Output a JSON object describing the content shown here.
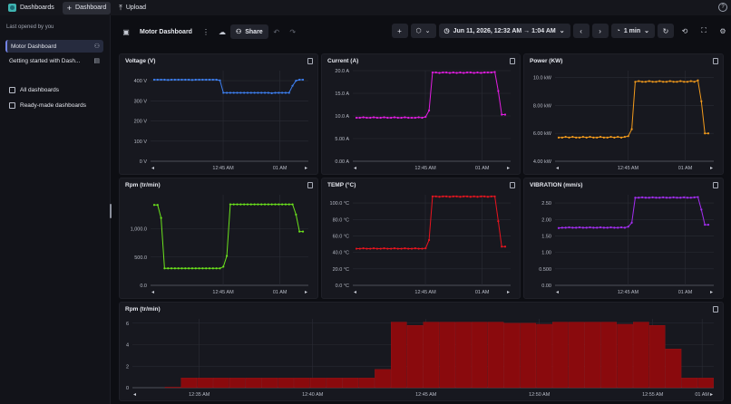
{
  "topbar": {
    "app_tab": "Dashboards",
    "dashboard_tab": "Dashboard",
    "upload_tab": "Upload",
    "help_glyph": "?"
  },
  "sidebar": {
    "section_label": "Last opened by you",
    "items": [
      {
        "label": "Motor Dashboard",
        "icon": "people-icon",
        "selected": true
      },
      {
        "label": "Getting started with Dash...",
        "icon": "dashboard-icon",
        "selected": false
      },
      {
        "label": "All dashboards",
        "icon": "grid-icon",
        "selected": false
      },
      {
        "label": "Ready-made dashboards",
        "icon": "template-icon",
        "selected": false
      }
    ]
  },
  "toolbar": {
    "title": "Motor Dashboard",
    "share_label": "Share",
    "timeframe": "Jun 11, 2026, 12:32 AM → 1:04 AM",
    "refresh_interval": "1 min"
  },
  "colors": {
    "voltage": "#3d7ff0",
    "current": "#e11de0",
    "power": "#f29a1c",
    "rpm": "#6be21d",
    "temp": "#e8141f",
    "vibration": "#a42ef2",
    "histogram": "#8a0a0d"
  },
  "chart_data": [
    {
      "id": "voltage",
      "type": "line",
      "title": "Voltage (V)",
      "ylim": [
        0,
        450
      ],
      "yticks": [
        0,
        100,
        200,
        300,
        400
      ],
      "ytick_labels": [
        "0 V",
        "100 V",
        "200 V",
        "300 V",
        "400 V"
      ],
      "xtick_labels": [
        "12:45 AM",
        "01 AM"
      ],
      "values": [
        405,
        405,
        405,
        405,
        404,
        405,
        405,
        405,
        405,
        405,
        405,
        404,
        405,
        405,
        405,
        405,
        405,
        405,
        405,
        402,
        340,
        340,
        340,
        340,
        340,
        340,
        340,
        340,
        340,
        340,
        340,
        340,
        340,
        340,
        338,
        340,
        340,
        340,
        340,
        340,
        375,
        400,
        405,
        405
      ]
    },
    {
      "id": "current",
      "type": "line",
      "title": "Current (A)",
      "ylim": [
        0,
        20
      ],
      "yticks": [
        0,
        5,
        10,
        15,
        20
      ],
      "ytick_labels": [
        "0.00 A",
        "5.00 A",
        "10.0 A",
        "15.0 A",
        "20.0 A"
      ],
      "xtick_labels": [
        "12:45 AM",
        "01 AM"
      ],
      "values": [
        9.6,
        9.6,
        9.7,
        9.6,
        9.6,
        9.7,
        9.6,
        9.6,
        9.7,
        9.6,
        9.6,
        9.7,
        9.6,
        9.6,
        9.7,
        9.6,
        9.6,
        9.6,
        9.7,
        9.6,
        9.8,
        11.2,
        19.6,
        19.6,
        19.5,
        19.6,
        19.6,
        19.5,
        19.6,
        19.5,
        19.6,
        19.5,
        19.6,
        19.6,
        19.5,
        19.6,
        19.5,
        19.6,
        19.6,
        19.6,
        19.7,
        15.5,
        10.3,
        10.3
      ]
    },
    {
      "id": "power",
      "type": "line",
      "title": "Power (KW)",
      "ylim": [
        4,
        10.5
      ],
      "yticks": [
        4,
        6,
        8,
        10
      ],
      "ytick_labels": [
        "4.00 kW",
        "6.00 kW",
        "8.00 kW",
        "10.0 kW"
      ],
      "xtick_labels": [
        "12:45 AM",
        "01 AM"
      ],
      "values": [
        5.7,
        5.7,
        5.75,
        5.7,
        5.75,
        5.7,
        5.7,
        5.75,
        5.7,
        5.75,
        5.7,
        5.7,
        5.75,
        5.7,
        5.7,
        5.75,
        5.7,
        5.75,
        5.7,
        5.75,
        5.8,
        6.3,
        9.7,
        9.75,
        9.7,
        9.7,
        9.75,
        9.7,
        9.7,
        9.75,
        9.7,
        9.7,
        9.75,
        9.7,
        9.7,
        9.75,
        9.7,
        9.7,
        9.75,
        9.7,
        9.8,
        8.3,
        6.0,
        6.0
      ]
    },
    {
      "id": "rpm",
      "type": "line",
      "title": "Rpm (tr/min)",
      "ylim": [
        0,
        1600
      ],
      "yticks": [
        0,
        500,
        1000
      ],
      "ytick_labels": [
        "0.0",
        "500.0",
        "1,000.0"
      ],
      "xtick_labels": [
        "12:45 AM",
        "01 AM"
      ],
      "values": [
        1420,
        1420,
        1190,
        300,
        300,
        300,
        300,
        300,
        300,
        300,
        300,
        300,
        300,
        300,
        300,
        300,
        300,
        300,
        300,
        300,
        330,
        520,
        1430,
        1430,
        1430,
        1430,
        1430,
        1430,
        1430,
        1430,
        1430,
        1430,
        1430,
        1430,
        1430,
        1430,
        1430,
        1430,
        1430,
        1430,
        1430,
        1250,
        950,
        950
      ]
    },
    {
      "id": "temp",
      "type": "line",
      "title": "TEMP (°C)",
      "ylim": [
        0,
        110
      ],
      "yticks": [
        0,
        20,
        40,
        60,
        80,
        100
      ],
      "ytick_labels": [
        "0.0 °C",
        "20.0 °C",
        "40.0 °C",
        "60.0 °C",
        "80.0 °C",
        "100.0 °C"
      ],
      "xtick_labels": [
        "12:45 AM",
        "01 AM"
      ],
      "values": [
        44.5,
        44.5,
        45,
        44.5,
        44.5,
        45,
        44.5,
        44.5,
        45,
        44.5,
        44.5,
        45,
        44.5,
        44.5,
        45,
        44.5,
        44.5,
        45,
        44.5,
        44.5,
        45,
        55,
        108,
        108,
        107.5,
        108,
        108,
        107.5,
        108,
        108,
        107.5,
        108,
        108,
        107.5,
        108,
        107.5,
        108,
        108,
        107.5,
        108,
        108,
        78,
        47,
        47
      ]
    },
    {
      "id": "vibration",
      "type": "line",
      "title": "VIBRATION (mm/s)",
      "ylim": [
        0,
        2.75
      ],
      "yticks": [
        0,
        0.5,
        1,
        1.5,
        2,
        2.5
      ],
      "ytick_labels": [
        "0.00",
        "0.500",
        "1.00",
        "1.50",
        "2.00",
        "2.50"
      ],
      "xtick_labels": [
        "12:45 AM",
        "01 AM"
      ],
      "values": [
        1.74,
        1.75,
        1.75,
        1.76,
        1.75,
        1.75,
        1.76,
        1.75,
        1.75,
        1.76,
        1.75,
        1.75,
        1.76,
        1.75,
        1.75,
        1.76,
        1.75,
        1.75,
        1.76,
        1.75,
        1.78,
        1.9,
        2.66,
        2.66,
        2.67,
        2.66,
        2.66,
        2.67,
        2.66,
        2.66,
        2.67,
        2.66,
        2.66,
        2.67,
        2.66,
        2.66,
        2.67,
        2.66,
        2.66,
        2.67,
        2.68,
        2.3,
        1.84,
        1.84
      ]
    },
    {
      "id": "rpm_histogram",
      "type": "bar",
      "title": "Rpm (tr/min)",
      "ylim": [
        0,
        6.4
      ],
      "yticks": [
        0,
        2,
        4,
        6
      ],
      "ytick_labels": [
        "0",
        "2",
        "4",
        "6"
      ],
      "xtick_labels": [
        "12:35 AM",
        "12:40 AM",
        "12:45 AM",
        "12:50 AM",
        "12:55 AM",
        "01 AM"
      ],
      "values": [
        0,
        0,
        0.05,
        0.9,
        0.9,
        0.9,
        0.9,
        0.9,
        0.9,
        0.9,
        0.9,
        0.9,
        0.9,
        0.9,
        0.9,
        1.7,
        6.1,
        5.8,
        6.1,
        6.1,
        6.1,
        6.1,
        6.1,
        6.0,
        6.0,
        5.9,
        6.1,
        6.1,
        6.1,
        6.1,
        5.9,
        6.1,
        5.8,
        3.6,
        0.9,
        0.9
      ]
    }
  ]
}
